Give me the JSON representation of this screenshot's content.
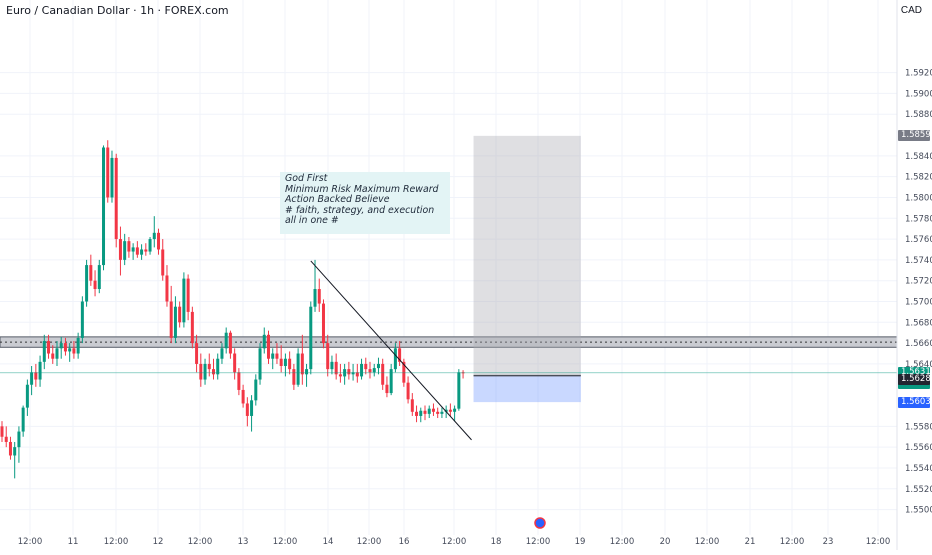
{
  "header": {
    "title": "Euro / Canadian Dollar · 1h · FOREX.com",
    "currency": "CAD"
  },
  "note": {
    "lines": [
      "God First",
      "Minimum Risk Maximum Reward",
      "Action Backed Believe",
      "",
      "# faith, strategy, and execution all in one #"
    ]
  },
  "chart_data": {
    "type": "candlestick",
    "symbol": "EURCAD",
    "interval": "1h",
    "ylim": [
      1.549,
      1.5984
    ],
    "y_ticks": [
      "1.59200",
      "1.59000",
      "1.58800",
      "1.58400",
      "1.58200",
      "1.58000",
      "1.57800",
      "1.57600",
      "1.57400",
      "1.57200",
      "1.57000",
      "1.56800",
      "1.56600",
      "1.56400",
      "1.55800",
      "1.55600",
      "1.55400",
      "1.55200",
      "1.55000"
    ],
    "x_ticks": [
      "12:00",
      "11",
      "12:00",
      "12",
      "12:00",
      "13",
      "12:00",
      "14",
      "12:00",
      "16",
      "12:00",
      "18",
      "12:00",
      "19",
      "12:00",
      "20",
      "12:00",
      "21",
      "12:00",
      "23",
      "12:00"
    ],
    "colors": {
      "up": "#089981",
      "down": "#f23645"
    },
    "candles": [
      [
        1.558,
        1.5585,
        1.5565,
        1.557
      ],
      [
        1.557,
        1.558,
        1.556,
        1.5565
      ],
      [
        1.5565,
        1.557,
        1.5548,
        1.5552
      ],
      [
        1.5552,
        1.5565,
        1.553,
        1.556
      ],
      [
        1.556,
        1.558,
        1.5545,
        1.5575
      ],
      [
        1.5575,
        1.56,
        1.557,
        1.5598
      ],
      [
        1.5598,
        1.5625,
        1.559,
        1.562
      ],
      [
        1.562,
        1.5638,
        1.561,
        1.5632
      ],
      [
        1.5632,
        1.564,
        1.5618,
        1.5625
      ],
      [
        1.5625,
        1.5648,
        1.5618,
        1.5642
      ],
      [
        1.5642,
        1.5668,
        1.5635,
        1.5662
      ],
      [
        1.5662,
        1.5668,
        1.5645,
        1.565
      ],
      [
        1.565,
        1.5658,
        1.564,
        1.5645
      ],
      [
        1.5645,
        1.5662,
        1.5638,
        1.5655
      ],
      [
        1.5655,
        1.5666,
        1.5645,
        1.566
      ],
      [
        1.566,
        1.5665,
        1.5648,
        1.5652
      ],
      [
        1.5652,
        1.566,
        1.5642,
        1.5655
      ],
      [
        1.5655,
        1.5662,
        1.5645,
        1.565
      ],
      [
        1.565,
        1.567,
        1.5645,
        1.5665
      ],
      [
        1.5665,
        1.5705,
        1.566,
        1.57
      ],
      [
        1.57,
        1.574,
        1.5695,
        1.5735
      ],
      [
        1.5735,
        1.5745,
        1.5715,
        1.572
      ],
      [
        1.572,
        1.573,
        1.5705,
        1.5712
      ],
      [
        1.5712,
        1.574,
        1.5708,
        1.5735
      ],
      [
        1.5735,
        1.585,
        1.573,
        1.5848
      ],
      [
        1.5848,
        1.5855,
        1.5795,
        1.58
      ],
      [
        1.58,
        1.5845,
        1.5795,
        1.5838
      ],
      [
        1.5838,
        1.5842,
        1.5752,
        1.576
      ],
      [
        1.576,
        1.5772,
        1.5725,
        1.574
      ],
      [
        1.574,
        1.5765,
        1.5735,
        1.5758
      ],
      [
        1.5758,
        1.5762,
        1.5742,
        1.5748
      ],
      [
        1.5748,
        1.5756,
        1.574,
        1.5752
      ],
      [
        1.5752,
        1.5758,
        1.5742,
        1.5745
      ],
      [
        1.5745,
        1.5755,
        1.574,
        1.575
      ],
      [
        1.575,
        1.5756,
        1.5744,
        1.5748
      ],
      [
        1.5748,
        1.5762,
        1.5745,
        1.576
      ],
      [
        1.576,
        1.5782,
        1.5752,
        1.5766
      ],
      [
        1.5766,
        1.577,
        1.5745,
        1.575
      ],
      [
        1.575,
        1.576,
        1.572,
        1.5725
      ],
      [
        1.5725,
        1.5735,
        1.5695,
        1.57
      ],
      [
        1.57,
        1.5715,
        1.566,
        1.5665
      ],
      [
        1.5665,
        1.5705,
        1.566,
        1.5695
      ],
      [
        1.5695,
        1.57,
        1.5675,
        1.568
      ],
      [
        1.568,
        1.5728,
        1.5675,
        1.5722
      ],
      [
        1.5722,
        1.5726,
        1.5682,
        1.569
      ],
      [
        1.569,
        1.5695,
        1.5655,
        1.566
      ],
      [
        1.566,
        1.5668,
        1.5632,
        1.564
      ],
      [
        1.564,
        1.565,
        1.5618,
        1.5625
      ],
      [
        1.5625,
        1.5645,
        1.562,
        1.564
      ],
      [
        1.564,
        1.565,
        1.5628,
        1.5635
      ],
      [
        1.5635,
        1.5645,
        1.5625,
        1.563
      ],
      [
        1.563,
        1.565,
        1.5625,
        1.5645
      ],
      [
        1.5645,
        1.566,
        1.564,
        1.5655
      ],
      [
        1.5655,
        1.5675,
        1.565,
        1.567
      ],
      [
        1.567,
        1.5672,
        1.5645,
        1.565
      ],
      [
        1.565,
        1.5655,
        1.5625,
        1.5632
      ],
      [
        1.5632,
        1.5636,
        1.561,
        1.5615
      ],
      [
        1.5615,
        1.562,
        1.5598,
        1.5602
      ],
      [
        1.5602,
        1.5608,
        1.558,
        1.559
      ],
      [
        1.559,
        1.561,
        1.5575,
        1.5605
      ],
      [
        1.5605,
        1.563,
        1.56,
        1.5625
      ],
      [
        1.5625,
        1.566,
        1.562,
        1.5655
      ],
      [
        1.5655,
        1.5675,
        1.565,
        1.5668
      ],
      [
        1.5668,
        1.5672,
        1.564,
        1.5645
      ],
      [
        1.5645,
        1.5655,
        1.5635,
        1.565
      ],
      [
        1.565,
        1.566,
        1.564,
        1.5645
      ],
      [
        1.5645,
        1.5658,
        1.5632,
        1.5638
      ],
      [
        1.5638,
        1.565,
        1.5628,
        1.5645
      ],
      [
        1.5645,
        1.5652,
        1.563,
        1.5635
      ],
      [
        1.5635,
        1.564,
        1.5615,
        1.562
      ],
      [
        1.562,
        1.5655,
        1.5618,
        1.565
      ],
      [
        1.565,
        1.5668,
        1.562,
        1.563
      ],
      [
        1.563,
        1.564,
        1.5618,
        1.5635
      ],
      [
        1.5635,
        1.57,
        1.563,
        1.5695
      ],
      [
        1.5695,
        1.574,
        1.569,
        1.5712
      ],
      [
        1.5712,
        1.5722,
        1.569,
        1.5698
      ],
      [
        1.5698,
        1.5702,
        1.5655,
        1.566
      ],
      [
        1.566,
        1.5668,
        1.5628,
        1.5635
      ],
      [
        1.5635,
        1.5648,
        1.563,
        1.5642
      ],
      [
        1.5642,
        1.565,
        1.5625,
        1.563
      ],
      [
        1.563,
        1.564,
        1.5622,
        1.5628
      ],
      [
        1.5628,
        1.564,
        1.562,
        1.5635
      ],
      [
        1.5635,
        1.5642,
        1.5625,
        1.563
      ],
      [
        1.563,
        1.564,
        1.5624,
        1.5632
      ],
      [
        1.5632,
        1.564,
        1.5622,
        1.5628
      ],
      [
        1.5628,
        1.5645,
        1.5625,
        1.564
      ],
      [
        1.564,
        1.5646,
        1.563,
        1.5635
      ],
      [
        1.5635,
        1.5642,
        1.5626,
        1.5632
      ],
      [
        1.5632,
        1.564,
        1.5628,
        1.5636
      ],
      [
        1.5636,
        1.5646,
        1.563,
        1.564
      ],
      [
        1.564,
        1.5645,
        1.5615,
        1.562
      ],
      [
        1.562,
        1.5628,
        1.5608,
        1.5612
      ],
      [
        1.5612,
        1.564,
        1.561,
        1.5635
      ],
      [
        1.5635,
        1.566,
        1.5632,
        1.5655
      ],
      [
        1.5655,
        1.5662,
        1.5638,
        1.5642
      ],
      [
        1.5642,
        1.5645,
        1.5618,
        1.5622
      ],
      [
        1.5622,
        1.5628,
        1.5602,
        1.5606
      ],
      [
        1.5606,
        1.5612,
        1.559,
        1.5594
      ],
      [
        1.5594,
        1.56,
        1.5584,
        1.559
      ],
      [
        1.559,
        1.5598,
        1.5584,
        1.5595
      ],
      [
        1.5595,
        1.56,
        1.5586,
        1.5592
      ],
      [
        1.5592,
        1.56,
        1.5588,
        1.5597
      ],
      [
        1.5597,
        1.5602,
        1.559,
        1.5594
      ],
      [
        1.5594,
        1.5598,
        1.5588,
        1.5592
      ],
      [
        1.5592,
        1.5598,
        1.5588,
        1.5594
      ],
      [
        1.5594,
        1.56,
        1.5588,
        1.5596
      ],
      [
        1.5596,
        1.5602,
        1.559,
        1.5594
      ],
      [
        1.5594,
        1.56,
        1.5585,
        1.5597
      ],
      [
        1.5597,
        1.5635,
        1.5595,
        1.5632
      ],
      [
        1.5632,
        1.5634,
        1.5626,
        1.5631
      ]
    ],
    "annotations": {
      "resistance_zone": [
        1.5656,
        1.5666
      ],
      "resistance_line": 1.5661,
      "current_price_line": 1.56315,
      "trendline": {
        "start": [
          73,
          1.5739
        ],
        "end": [
          111,
          1.5567
        ]
      },
      "long_position": {
        "entry": 1.56287,
        "target": 1.58592,
        "stop": 1.56033,
        "start_index": 111,
        "end_index": 134
      }
    },
    "price_labels": [
      {
        "value": "1.58592",
        "color": "#787b86"
      },
      {
        "value": "1.56315",
        "sub": "56:53",
        "color": "#089981"
      },
      {
        "value": "1.56287",
        "color": "#222631"
      },
      {
        "value": "1.56033",
        "color": "#2962ff"
      }
    ]
  }
}
